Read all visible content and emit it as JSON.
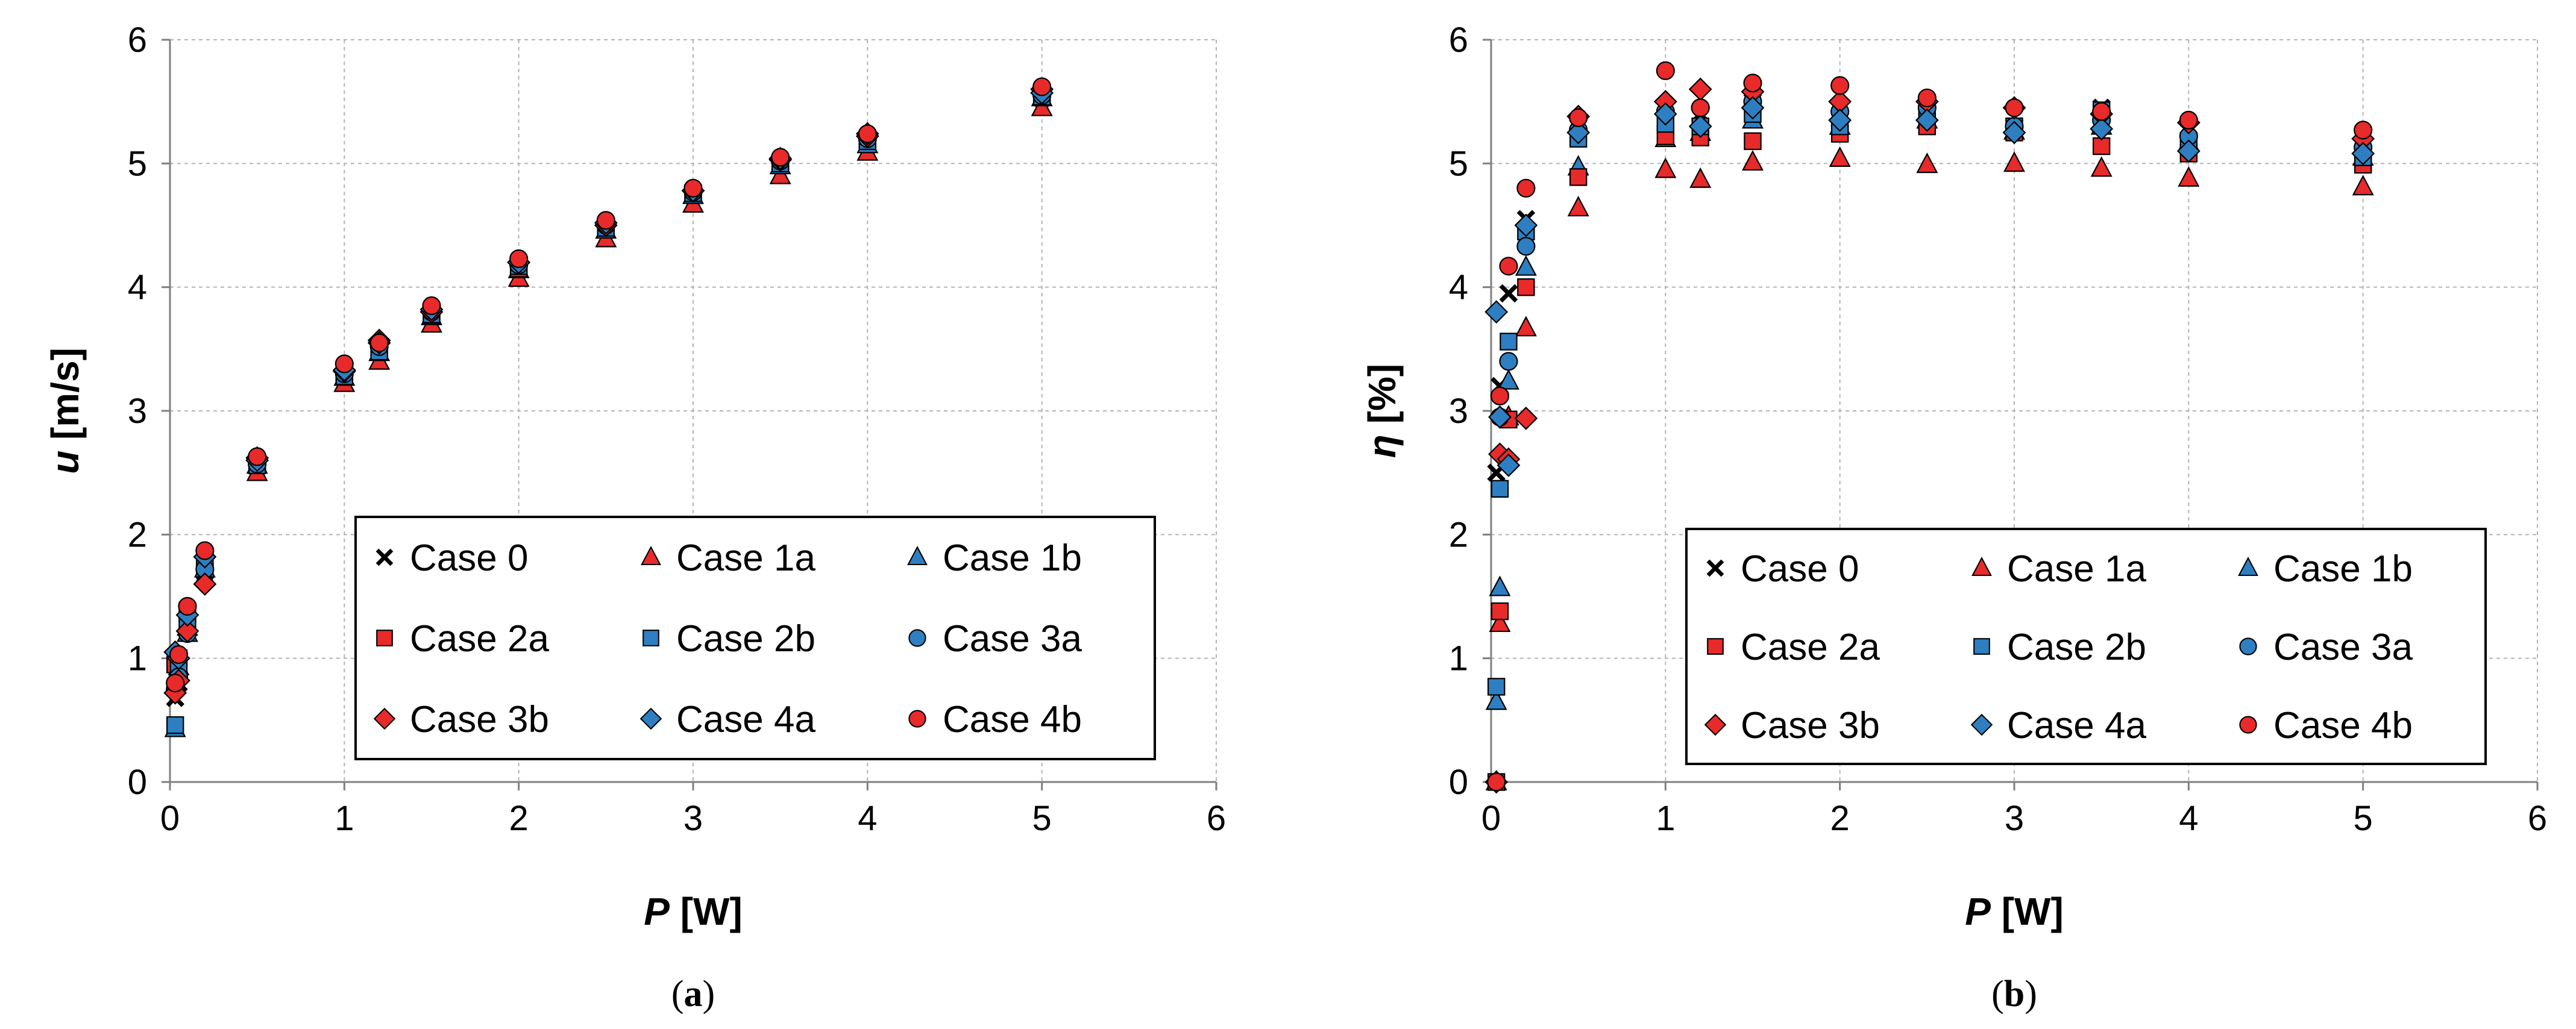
{
  "chart_data": [
    {
      "type": "scatter",
      "caption": "a",
      "xlabel": {
        "var": "P",
        "unit": "[W]"
      },
      "ylabel": {
        "var": "u",
        "unit": "[m/s]"
      },
      "xlim": [
        0,
        6
      ],
      "ylim": [
        0,
        6
      ],
      "xticks": [
        "0",
        "1",
        "2",
        "3",
        "4",
        "5",
        "6"
      ],
      "yticks": [
        "0",
        "1",
        "2",
        "3",
        "4",
        "5",
        "6"
      ],
      "grid": true,
      "legend_position": "lower-right",
      "series": [
        {
          "name": "Case 0",
          "marker": "cross",
          "color": "#000000",
          "x": [
            0.03,
            0.05,
            0.1,
            0.2,
            0.5,
            1,
            1.2,
            1.5,
            2,
            2.5,
            3,
            3.5,
            4,
            5
          ],
          "y": [
            0.68,
            0.8,
            1.25,
            1.7,
            2.55,
            3.3,
            3.5,
            3.77,
            4.15,
            4.47,
            4.75,
            5.0,
            5.18,
            5.53
          ]
        },
        {
          "name": "Case 1a",
          "marker": "triangle",
          "color": "#e82a2a",
          "x": [
            0.03,
            0.05,
            0.1,
            0.2,
            0.5,
            1,
            1.2,
            1.5,
            2,
            2.5,
            3,
            3.5,
            4,
            5
          ],
          "y": [
            0.78,
            0.93,
            1.25,
            1.66,
            2.5,
            3.22,
            3.4,
            3.7,
            4.07,
            4.39,
            4.67,
            4.9,
            5.09,
            5.45
          ]
        },
        {
          "name": "Case 1b",
          "marker": "triangle",
          "color": "#2e7fc1",
          "x": [
            0.03,
            0.05,
            0.1,
            0.2,
            0.5,
            1,
            1.2,
            1.5,
            2,
            2.5,
            3,
            3.5,
            4,
            5
          ],
          "y": [
            0.43,
            0.88,
            1.2,
            1.72,
            2.56,
            3.27,
            3.47,
            3.76,
            4.14,
            4.46,
            4.74,
            4.98,
            5.15,
            5.53
          ]
        },
        {
          "name": "Case 2a",
          "marker": "square",
          "color": "#e82a2a",
          "x": [
            0.03,
            0.05,
            0.1,
            0.2,
            0.5,
            1,
            1.2,
            1.5,
            2,
            2.5,
            3,
            3.5,
            4,
            5
          ],
          "y": [
            0.95,
            1.0,
            1.38,
            1.8,
            2.57,
            3.3,
            3.5,
            3.77,
            4.15,
            4.48,
            4.76,
            5.0,
            5.2,
            5.55
          ]
        },
        {
          "name": "Case 2b",
          "marker": "square",
          "color": "#2e7fc1",
          "x": [
            0.03,
            0.05,
            0.1,
            0.2,
            0.5,
            1,
            1.2,
            1.5,
            2,
            2.5,
            3,
            3.5,
            4,
            5
          ],
          "y": [
            0.46,
            0.9,
            1.3,
            1.75,
            2.56,
            3.28,
            3.48,
            3.78,
            4.17,
            4.48,
            4.76,
            5.0,
            5.18,
            5.54
          ]
        },
        {
          "name": "Case 3a",
          "marker": "circle",
          "color": "#2e7fc1",
          "x": [
            0.03,
            0.05,
            0.1,
            0.2,
            0.5,
            1,
            1.2,
            1.5,
            2,
            2.5,
            3,
            3.5,
            4,
            5
          ],
          "y": [
            0.75,
            0.85,
            1.2,
            1.72,
            2.57,
            3.3,
            3.52,
            3.8,
            4.18,
            4.5,
            4.77,
            5.02,
            5.2,
            5.55
          ]
        },
        {
          "name": "Case 3b",
          "marker": "diamond",
          "color": "#e82a2a",
          "x": [
            0.03,
            0.05,
            0.1,
            0.2,
            0.5,
            1,
            1.2,
            1.5,
            2,
            2.5,
            3,
            3.5,
            4,
            5
          ],
          "y": [
            0.72,
            0.82,
            1.22,
            1.6,
            2.62,
            3.32,
            3.57,
            3.8,
            4.2,
            4.5,
            4.78,
            5.03,
            5.22,
            5.6
          ]
        },
        {
          "name": "Case 4a",
          "marker": "diamond",
          "color": "#2e7fc1",
          "x": [
            0.03,
            0.05,
            0.1,
            0.2,
            0.5,
            1,
            1.2,
            1.5,
            2,
            2.5,
            3,
            3.5,
            4,
            5
          ],
          "y": [
            1.05,
            1.0,
            1.35,
            1.82,
            2.6,
            3.33,
            3.55,
            3.82,
            4.2,
            4.52,
            4.78,
            5.04,
            5.24,
            5.57
          ]
        },
        {
          "name": "Case 4b",
          "marker": "circle",
          "color": "#e82a2a",
          "x": [
            0.03,
            0.05,
            0.1,
            0.2,
            0.5,
            1,
            1.2,
            1.5,
            2,
            2.5,
            3,
            3.5,
            4,
            5
          ],
          "y": [
            0.8,
            1.03,
            1.42,
            1.87,
            2.63,
            3.38,
            3.55,
            3.85,
            4.23,
            4.54,
            4.8,
            5.05,
            5.24,
            5.62
          ]
        }
      ]
    },
    {
      "type": "scatter",
      "caption": "b",
      "xlabel": {
        "var": "P",
        "unit": "[W]"
      },
      "ylabel": {
        "var": "η",
        "unit": "[%]"
      },
      "xlim": [
        0,
        6
      ],
      "ylim": [
        0,
        6
      ],
      "xticks": [
        "0",
        "1",
        "2",
        "3",
        "4",
        "5",
        "6"
      ],
      "yticks": [
        "0",
        "1",
        "2",
        "3",
        "4",
        "5",
        "6"
      ],
      "grid": true,
      "legend_position": "lower-right",
      "series": [
        {
          "name": "Case 0",
          "marker": "cross",
          "color": "#000000",
          "x": [
            0.03,
            0.05,
            0.1,
            0.2,
            0.5,
            1,
            1.2,
            1.5,
            2,
            2.5,
            3,
            3.5,
            4,
            5
          ],
          "y": [
            2.5,
            3.2,
            3.95,
            4.55,
            5.3,
            5.35,
            5.4,
            5.5,
            5.35,
            5.35,
            5.3,
            5.45,
            5.2,
            5.1
          ]
        },
        {
          "name": "Case 1a",
          "marker": "triangle",
          "color": "#e82a2a",
          "x": [
            0.03,
            0.05,
            0.1,
            0.2,
            0.5,
            1,
            1.2,
            1.5,
            2,
            2.5,
            3,
            3.5,
            4,
            5
          ],
          "y": [
            0.0,
            1.28,
            2.95,
            3.67,
            4.64,
            4.95,
            4.87,
            5.01,
            5.04,
            4.99,
            5.0,
            4.96,
            4.88,
            4.81
          ]
        },
        {
          "name": "Case 1b",
          "marker": "triangle",
          "color": "#2e7fc1",
          "x": [
            0.03,
            0.05,
            0.1,
            0.2,
            0.5,
            1,
            1.2,
            1.5,
            2,
            2.5,
            3,
            3.5,
            4,
            5
          ],
          "y": [
            0.65,
            1.57,
            3.24,
            4.16,
            4.97,
            5.2,
            5.25,
            5.35,
            5.3,
            5.35,
            5.26,
            5.3,
            5.17,
            5.05
          ]
        },
        {
          "name": "Case 2a",
          "marker": "square",
          "color": "#e82a2a",
          "x": [
            0.03,
            0.05,
            0.1,
            0.2,
            0.5,
            1,
            1.2,
            1.5,
            2,
            2.5,
            3,
            3.5,
            4,
            5
          ],
          "y": [
            0.0,
            1.38,
            2.93,
            4.0,
            4.89,
            5.22,
            5.21,
            5.18,
            5.24,
            5.3,
            5.25,
            5.14,
            5.08,
            4.99
          ]
        },
        {
          "name": "Case 2b",
          "marker": "square",
          "color": "#2e7fc1",
          "x": [
            0.03,
            0.05,
            0.1,
            0.2,
            0.5,
            1,
            1.2,
            1.5,
            2,
            2.5,
            3,
            3.5,
            4,
            5
          ],
          "y": [
            0.77,
            2.37,
            3.56,
            4.45,
            5.2,
            5.32,
            5.3,
            5.4,
            5.3,
            5.4,
            5.3,
            5.43,
            5.15,
            5.05
          ]
        },
        {
          "name": "Case 3a",
          "marker": "circle",
          "color": "#2e7fc1",
          "x": [
            0.03,
            0.05,
            0.1,
            0.2,
            0.5,
            1,
            1.2,
            1.5,
            2,
            2.5,
            3,
            3.5,
            4,
            5
          ],
          "y": [
            0.0,
            2.95,
            3.4,
            4.33,
            5.27,
            5.42,
            5.45,
            5.5,
            5.42,
            5.45,
            5.3,
            5.35,
            5.22,
            5.13
          ]
        },
        {
          "name": "Case 3b",
          "marker": "diamond",
          "color": "#e82a2a",
          "x": [
            0.03,
            0.05,
            0.1,
            0.2,
            0.5,
            1,
            1.2,
            1.5,
            2,
            2.5,
            3,
            3.5,
            4,
            5
          ],
          "y": [
            0.0,
            2.65,
            2.61,
            2.94,
            5.38,
            5.5,
            5.6,
            5.58,
            5.5,
            5.5,
            5.45,
            5.4,
            5.33,
            5.2
          ]
        },
        {
          "name": "Case 4a",
          "marker": "diamond",
          "color": "#2e7fc1",
          "x": [
            0.03,
            0.05,
            0.1,
            0.2,
            0.5,
            1,
            1.2,
            1.5,
            2,
            2.5,
            3,
            3.5,
            4,
            5
          ],
          "y": [
            3.8,
            2.95,
            2.56,
            4.5,
            5.25,
            5.4,
            5.3,
            5.45,
            5.35,
            5.35,
            5.25,
            5.28,
            5.1,
            5.08
          ]
        },
        {
          "name": "Case 4b",
          "marker": "circle",
          "color": "#e82a2a",
          "x": [
            0.03,
            0.05,
            0.1,
            0.2,
            0.5,
            1,
            1.2,
            1.5,
            2,
            2.5,
            3,
            3.5,
            4,
            5
          ],
          "y": [
            0.0,
            3.12,
            4.17,
            4.8,
            5.37,
            5.75,
            5.45,
            5.65,
            5.63,
            5.53,
            5.45,
            5.42,
            5.35,
            5.27
          ]
        }
      ]
    }
  ]
}
